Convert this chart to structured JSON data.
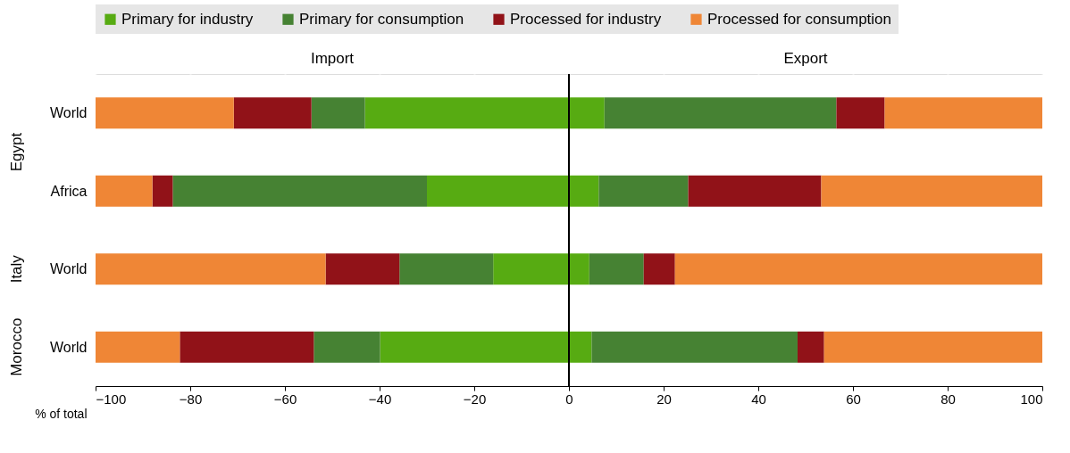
{
  "chart_data": {
    "type": "bar",
    "orientation": "horizontal",
    "stacked": true,
    "categories": [
      "World",
      "Africa",
      "World",
      "World"
    ],
    "series": [
      {
        "name": "Primary for industry",
        "color": "#57ab12",
        "values": [
          -43.1,
          -30,
          -16,
          -39.9
        ]
      },
      {
        "name": "Primary for consumption",
        "color": "#468233",
        "values": [
          -11.3,
          -53.7,
          -19.8,
          -14
        ]
      },
      {
        "name": "Processed for industry",
        "color": "#911218",
        "values": [
          -16.4,
          -4.3,
          -15.6,
          -28.3
        ]
      },
      {
        "name": "Processed for consumption",
        "color": "#ef8636",
        "values": [
          -29.2,
          -12,
          -48.6,
          -17.8
        ]
      },
      {
        "color": "#57ab12",
        "values": [
          7.5,
          6.3,
          4.3,
          4.8
        ]
      },
      {
        "color": "#468233",
        "values": [
          49,
          18.9,
          11.5,
          43.5
        ]
      },
      {
        "color": "#911218",
        "values": [
          10.2,
          28.1,
          6.6,
          5.6
        ]
      },
      {
        "color": "#ef8636",
        "values": [
          33.3,
          46.7,
          77.6,
          46.1
        ]
      }
    ],
    "xlabel": "% of total",
    "xlim": [
      -100,
      100
    ],
    "xticks": [
      -100,
      -80,
      -60,
      -40,
      -20,
      0,
      20,
      40,
      60,
      80,
      100
    ],
    "annotations": [
      "Import",
      "Export",
      "Egypt",
      "Italy",
      "Morocco"
    ],
    "ref_lines": [
      {
        "axis": "x",
        "value": 0,
        "color": "#000000"
      }
    ],
    "grid": "x",
    "legend": "top"
  }
}
